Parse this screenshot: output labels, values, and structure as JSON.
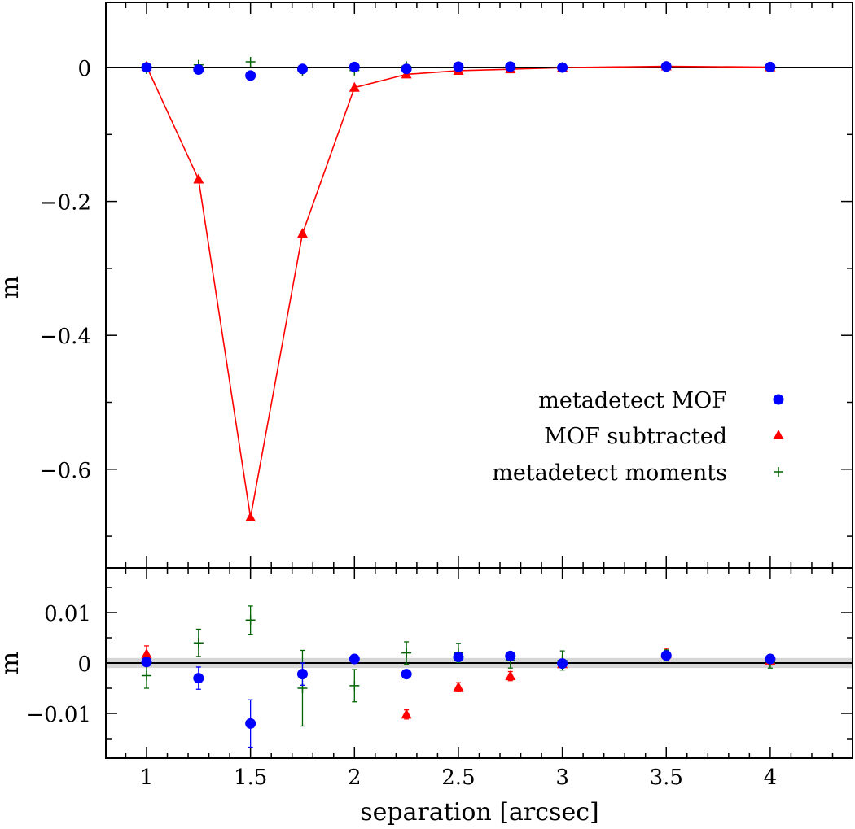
{
  "chart_data": [
    {
      "type": "scatter",
      "panel": "top",
      "xlabel": "",
      "ylabel": "m",
      "xlim": [
        0.8,
        4.4
      ],
      "ylim": [
        -0.74,
        0.1
      ],
      "x_ticks": [
        1,
        1.5,
        2,
        2.5,
        3,
        3.5,
        4
      ],
      "y_ticks": [
        0,
        -0.2,
        -0.4,
        -0.6
      ],
      "y_tick_labels": [
        "0",
        "−0.2",
        "−0.4",
        "−0.6"
      ],
      "reference_line": 0,
      "legend": {
        "position": "lower-right"
      },
      "series": [
        {
          "name": "metadetect MOF",
          "marker": "circle",
          "color": "#0000ff",
          "x": [
            1,
            1.25,
            1.5,
            1.75,
            2,
            2.25,
            2.5,
            2.75,
            3,
            3.5,
            4
          ],
          "y": [
            0.0002,
            -0.003,
            -0.012,
            -0.0022,
            0.0008,
            -0.0022,
            0.0012,
            0.0014,
            -0.0001,
            0.0015,
            0.0008
          ]
        },
        {
          "name": "MOF subtracted",
          "marker": "triangle",
          "line": true,
          "color": "#ff0000",
          "x": [
            1,
            1.25,
            1.5,
            1.75,
            2,
            2.25,
            2.5,
            2.75,
            3,
            3.5,
            4
          ],
          "y": [
            0.0018,
            -0.167,
            -0.672,
            -0.248,
            -0.03,
            -0.0102,
            -0.0048,
            -0.0026,
            -0.0002,
            0.0018,
            0.0005
          ]
        },
        {
          "name": "metadetect moments",
          "marker": "plus",
          "color": "#006400",
          "x": [
            1,
            1.25,
            1.5,
            1.75,
            2,
            2.25,
            2.5,
            2.75,
            3,
            3.5,
            4
          ],
          "y": [
            -0.0025,
            0.004,
            0.0085,
            -0.005,
            -0.0045,
            0.002,
            0.002,
            0.0005,
            0.0005,
            0.0015,
            0.0002
          ]
        }
      ]
    },
    {
      "type": "scatter",
      "panel": "bottom",
      "xlabel": "separation [arcsec]",
      "ylabel": "m",
      "xlim": [
        0.8,
        4.4
      ],
      "ylim": [
        -0.019,
        0.019
      ],
      "x_ticks": [
        1,
        1.5,
        2,
        2.5,
        3,
        3.5,
        4
      ],
      "x_tick_labels": [
        "1",
        "1.5",
        "2",
        "2.5",
        "3",
        "3.5",
        "4"
      ],
      "y_ticks": [
        0.01,
        0,
        -0.01
      ],
      "y_tick_labels": [
        "0.01",
        "0",
        "−0.01"
      ],
      "reference_line": 0,
      "shaded_band": [
        -0.001,
        0.001
      ],
      "series": [
        {
          "name": "metadetect MOF",
          "marker": "circle",
          "color": "#0000ff",
          "x": [
            1,
            1.25,
            1.5,
            1.75,
            2,
            2.25,
            2.5,
            2.75,
            3,
            3.5,
            4
          ],
          "y": [
            0.0002,
            -0.003,
            -0.012,
            -0.0022,
            0.0008,
            -0.0022,
            0.0012,
            0.0014,
            -0.0001,
            0.0015,
            0.0008
          ],
          "yerr": [
            0.0007,
            0.0022,
            0.0047,
            0.0022,
            0.0008,
            0.0008,
            0.0006,
            0.0006,
            0.0004,
            0.0009,
            0.0007
          ]
        },
        {
          "name": "MOF subtracted",
          "marker": "triangle",
          "color": "#ff0000",
          "x": [
            1,
            1.25,
            1.5,
            1.75,
            2,
            2.25,
            2.5,
            2.75,
            3,
            3.5,
            4
          ],
          "y": [
            0.0018,
            null,
            null,
            null,
            null,
            -0.0102,
            -0.0048,
            -0.0026,
            -0.0002,
            0.0018,
            0.0005
          ],
          "yerr": [
            0.0016,
            null,
            null,
            null,
            null,
            0.0009,
            0.0009,
            0.0009,
            0.0006,
            0.0011,
            0.0009
          ]
        },
        {
          "name": "metadetect moments",
          "marker": "plus",
          "color": "#006400",
          "x": [
            1,
            1.25,
            1.5,
            1.75,
            2,
            2.25,
            2.5,
            2.75,
            3,
            3.5,
            4
          ],
          "y": [
            -0.0025,
            0.004,
            0.0085,
            -0.005,
            -0.0045,
            0.002,
            0.002,
            0.0005,
            0.0005,
            0.0015,
            0.0002
          ],
          "yerr": [
            0.0025,
            0.0027,
            0.0028,
            0.0075,
            0.0032,
            0.0022,
            0.0019,
            0.0015,
            0.0019,
            0.0011,
            0.0012
          ]
        }
      ]
    }
  ]
}
